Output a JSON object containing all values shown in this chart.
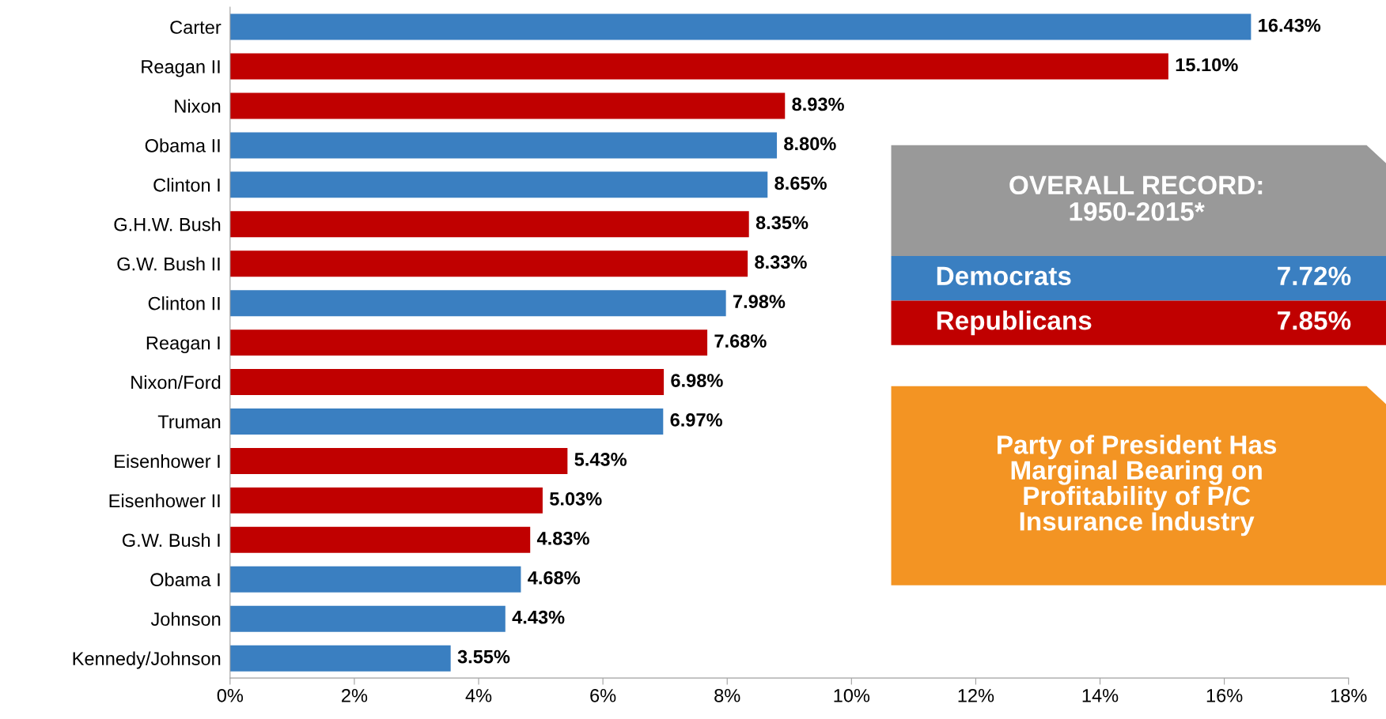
{
  "chart_data": {
    "type": "bar",
    "orientation": "horizontal",
    "categories": [
      "Carter",
      "Reagan II",
      "Nixon",
      "Obama II",
      "Clinton I",
      "G.H.W. Bush",
      "G.W. Bush II",
      "Clinton II",
      "Reagan I",
      "Nixon/Ford",
      "Truman",
      "Eisenhower I",
      "Eisenhower II",
      "G.W. Bush I",
      "Obama I",
      "Johnson",
      "Kennedy/Johnson"
    ],
    "values": [
      16.43,
      15.1,
      8.93,
      8.8,
      8.65,
      8.35,
      8.33,
      7.98,
      7.68,
      6.98,
      6.97,
      5.43,
      5.03,
      4.83,
      4.68,
      4.43,
      3.55
    ],
    "colors": [
      "#3a7fc1",
      "#c00000",
      "#c00000",
      "#3a7fc1",
      "#3a7fc1",
      "#c00000",
      "#c00000",
      "#3a7fc1",
      "#c00000",
      "#c00000",
      "#3a7fc1",
      "#c00000",
      "#c00000",
      "#c00000",
      "#3a7fc1",
      "#3a7fc1",
      "#3a7fc1"
    ],
    "value_labels": [
      "16.43%",
      "15.10%",
      "8.93%",
      "8.80%",
      "8.65%",
      "8.35%",
      "8.33%",
      "7.98%",
      "7.68%",
      "6.98%",
      "6.97%",
      "5.43%",
      "5.03%",
      "4.83%",
      "4.68%",
      "4.43%",
      "3.55%"
    ],
    "xlim": [
      0,
      18
    ],
    "xticks": [
      {
        "value": 0,
        "label": "0%"
      },
      {
        "value": 2,
        "label": "2%"
      },
      {
        "value": 4,
        "label": "4%"
      },
      {
        "value": 6,
        "label": "6%"
      },
      {
        "value": 8,
        "label": "8%"
      },
      {
        "value": 10,
        "label": "10%"
      },
      {
        "value": 12,
        "label": "12%"
      },
      {
        "value": 14,
        "label": "14%"
      },
      {
        "value": 16,
        "label": "16%"
      },
      {
        "value": 18,
        "label": "18%"
      }
    ],
    "grid": false,
    "legend": false,
    "annotations": [
      "OVERALL RECORD:\n1950-2015*",
      "Democrats",
      "7.72%",
      "Republicans",
      "7.85%",
      "Party of President Has\nMarginal Bearing on\nProfitability of P/C\nInsurance Industry"
    ]
  }
}
